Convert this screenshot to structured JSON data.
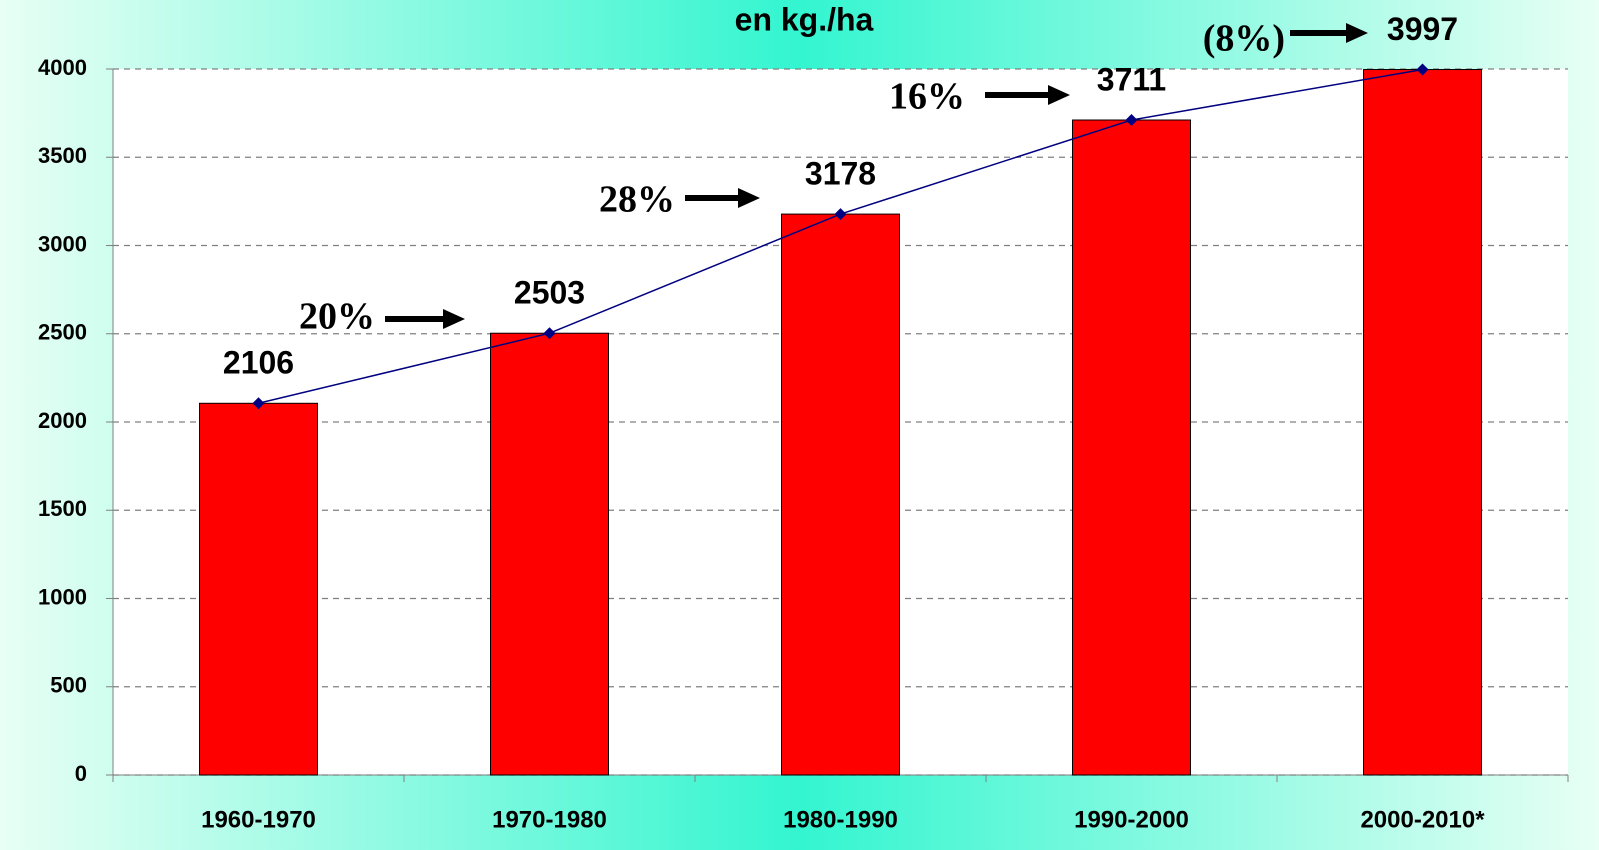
{
  "chart_data": {
    "type": "bar",
    "title": "en kg./ha",
    "categories": [
      "1960-1970",
      "1970-1980",
      "1980-1990",
      "1990-2000",
      "2000-2010*"
    ],
    "values": [
      2106,
      2503,
      3178,
      3711,
      3997
    ],
    "color": "#ff0000",
    "line_color": "#000080",
    "ylim": [
      0,
      4000
    ],
    "yticks": [
      0,
      500,
      1000,
      1500,
      2000,
      2500,
      3000,
      3500,
      4000
    ],
    "grid": true,
    "annotations": [
      "20%",
      "28%",
      "16%",
      "(8%)"
    ]
  }
}
